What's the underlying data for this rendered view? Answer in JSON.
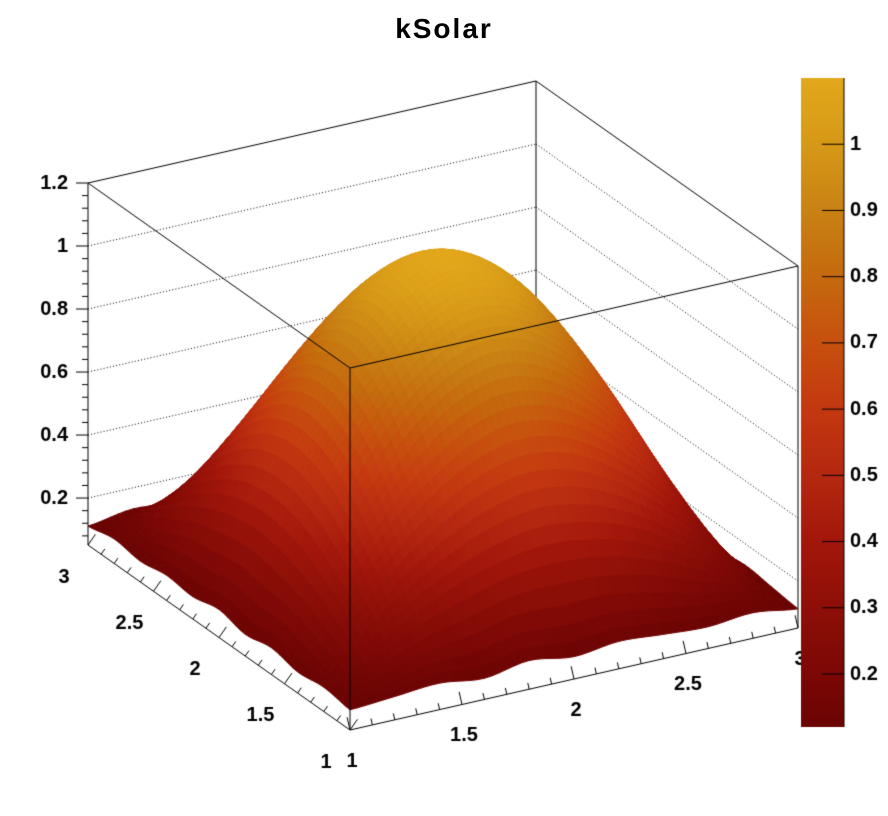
{
  "chart_data": {
    "type": "surface3d",
    "title": "kSolar",
    "palette_name": "kSolar",
    "background_color": "#ffffff",
    "line_color": "#000000",
    "x_axis": {
      "range": [
        1,
        3
      ],
      "major": [
        1,
        1.5,
        2,
        2.5,
        3
      ],
      "minor_step": 0.1
    },
    "y_axis": {
      "range": [
        1,
        3
      ],
      "major": [
        1,
        1.5,
        2,
        2.5,
        3
      ],
      "minor_step": 0.1
    },
    "z_axis": {
      "frame_range": [
        0.051,
        1.2
      ],
      "major": [
        0.2,
        0.4,
        0.6,
        0.8,
        1,
        1.2
      ],
      "minor_step": 0.04,
      "grid": "dotted"
    },
    "colorbar": {
      "min": 0.12,
      "max": 1.1,
      "ticks": [
        0.2,
        0.3,
        0.4,
        0.5,
        0.6,
        0.7,
        0.8,
        0.9,
        1
      ]
    },
    "palette_stops": [
      [
        0.12,
        "#6A0403"
      ],
      [
        0.2,
        "#7C0805"
      ],
      [
        0.3,
        "#8E0F08"
      ],
      [
        0.4,
        "#A3170B"
      ],
      [
        0.5,
        "#B52810"
      ],
      [
        0.6,
        "#C43810"
      ],
      [
        0.7,
        "#C7500E"
      ],
      [
        0.8,
        "#C56A0E"
      ],
      [
        0.9,
        "#C98214"
      ],
      [
        1.0,
        "#D69917"
      ],
      [
        1.1,
        "#E3A81C"
      ]
    ],
    "surface": {
      "x": [
        1,
        1.2,
        1.4,
        1.6,
        1.8,
        2,
        2.2,
        2.4,
        2.6,
        2.8,
        3
      ],
      "y": [
        1,
        1.2,
        1.4,
        1.6,
        1.8,
        2,
        2.2,
        2.4,
        2.6,
        2.8,
        3
      ],
      "z": [
        [
          0.115,
          0.125,
          0.135,
          0.118,
          0.142,
          0.122,
          0.138,
          0.128,
          0.12,
          0.132,
          0.112
        ],
        [
          0.128,
          0.205,
          0.292,
          0.355,
          0.4,
          0.418,
          0.402,
          0.36,
          0.288,
          0.207,
          0.122
        ],
        [
          0.118,
          0.292,
          0.455,
          0.578,
          0.662,
          0.695,
          0.665,
          0.578,
          0.45,
          0.292,
          0.132
        ],
        [
          0.136,
          0.357,
          0.58,
          0.76,
          0.87,
          0.912,
          0.87,
          0.756,
          0.582,
          0.356,
          0.118
        ],
        [
          0.12,
          0.402,
          0.663,
          0.872,
          1.004,
          1.052,
          1.006,
          0.87,
          0.665,
          0.4,
          0.13
        ],
        [
          0.14,
          0.415,
          0.694,
          0.91,
          1.052,
          1.1,
          1.05,
          0.912,
          0.69,
          0.417,
          0.121
        ],
        [
          0.122,
          0.4,
          0.666,
          0.87,
          1.004,
          1.051,
          1.004,
          0.872,
          0.662,
          0.402,
          0.136
        ],
        [
          0.131,
          0.357,
          0.582,
          0.757,
          0.872,
          0.91,
          0.871,
          0.758,
          0.58,
          0.358,
          0.119
        ],
        [
          0.117,
          0.29,
          0.452,
          0.58,
          0.663,
          0.694,
          0.664,
          0.582,
          0.452,
          0.29,
          0.141
        ],
        [
          0.129,
          0.206,
          0.289,
          0.357,
          0.402,
          0.415,
          0.4,
          0.357,
          0.291,
          0.204,
          0.116
        ],
        [
          0.111,
          0.133,
          0.121,
          0.139,
          0.117,
          0.126,
          0.131,
          0.122,
          0.136,
          0.124,
          0.113
        ]
      ]
    }
  }
}
